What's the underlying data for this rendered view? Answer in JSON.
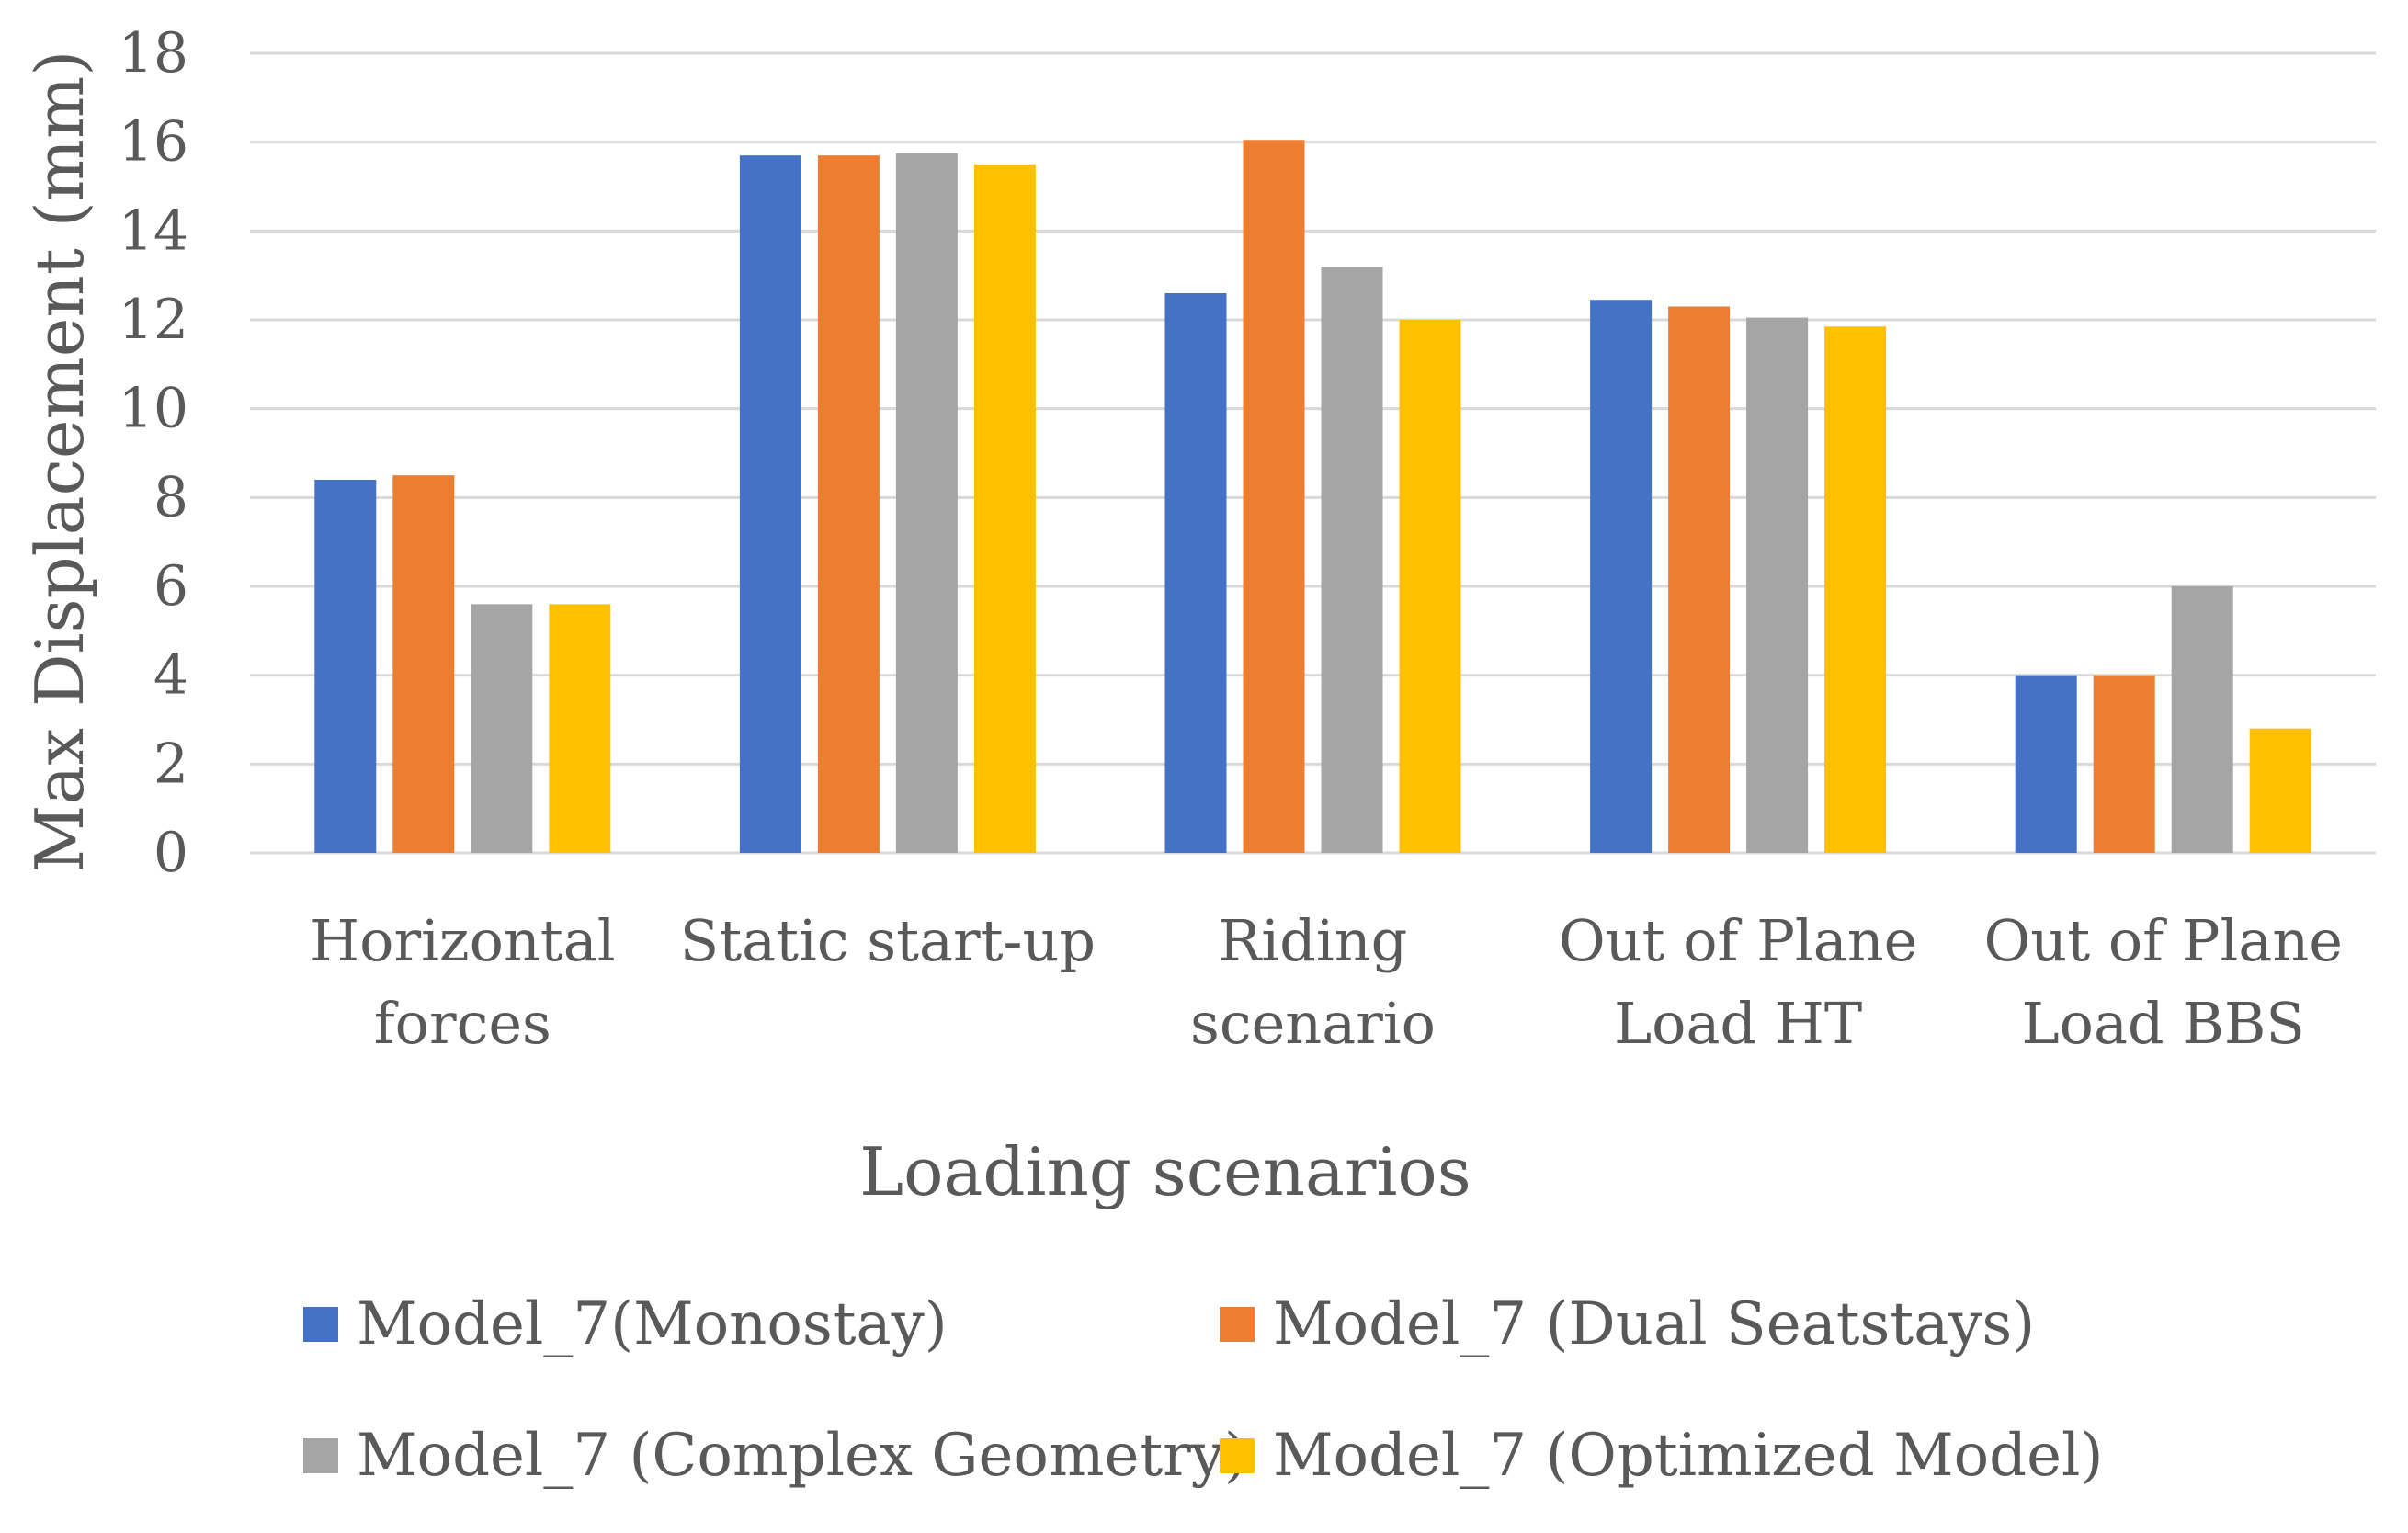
{
  "chart_data": {
    "type": "bar",
    "title": "",
    "xlabel": "Loading scenarios",
    "ylabel": "Max Displacement (mm)",
    "ylim": [
      0,
      18
    ],
    "yticks": [
      0,
      2,
      4,
      6,
      8,
      10,
      12,
      14,
      16,
      18
    ],
    "grid": true,
    "legend_position": "bottom",
    "categories": [
      [
        "Horizontal",
        "forces"
      ],
      [
        "Static start-up"
      ],
      [
        "Riding",
        "scenario"
      ],
      [
        "Out of Plane",
        "Load HT"
      ],
      [
        "Out of Plane",
        "Load BBS"
      ]
    ],
    "series": [
      {
        "name": "Model_7(Monostay)",
        "color": "#4472C4",
        "values": [
          8.4,
          15.7,
          12.6,
          12.45,
          4.0
        ]
      },
      {
        "name": "Model_7 (Dual Seatstays)",
        "color": "#ED7D31",
        "values": [
          8.5,
          15.7,
          16.05,
          12.3,
          4.0
        ]
      },
      {
        "name": "Model_7 (Complex Geometry)",
        "color": "#A5A5A5",
        "values": [
          5.6,
          15.75,
          13.2,
          12.05,
          6.0
        ]
      },
      {
        "name": "Model_7 (Optimized Model)",
        "color": "#FFC000",
        "values": [
          5.6,
          15.5,
          12.0,
          11.85,
          2.8
        ]
      }
    ]
  }
}
